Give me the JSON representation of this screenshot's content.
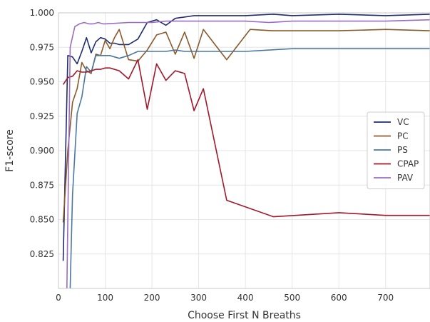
{
  "chart_data": {
    "type": "line",
    "title": "",
    "xlabel": "Choose First N Breaths",
    "ylabel": "F1-score",
    "xlim": [
      0,
      795
    ],
    "ylim": [
      0.8,
      1.0
    ],
    "xticks": [
      0,
      100,
      200,
      300,
      400,
      500,
      600,
      700
    ],
    "yticks": [
      0.825,
      0.85,
      0.875,
      0.9,
      0.925,
      0.95,
      0.975,
      1.0
    ],
    "grid": true,
    "legend_position": "center-right",
    "series": [
      {
        "name": "VC",
        "color": "#1f2c6e",
        "points": [
          [
            10,
            0.82
          ],
          [
            20,
            0.969
          ],
          [
            30,
            0.968
          ],
          [
            40,
            0.963
          ],
          [
            50,
            0.972
          ],
          [
            60,
            0.982
          ],
          [
            70,
            0.971
          ],
          [
            80,
            0.979
          ],
          [
            90,
            0.982
          ],
          [
            100,
            0.981
          ],
          [
            110,
            0.978
          ],
          [
            120,
            0.978
          ],
          [
            130,
            0.977
          ],
          [
            150,
            0.977
          ],
          [
            170,
            0.981
          ],
          [
            190,
            0.993
          ],
          [
            210,
            0.995
          ],
          [
            230,
            0.991
          ],
          [
            250,
            0.996
          ],
          [
            290,
            0.998
          ],
          [
            400,
            0.998
          ],
          [
            460,
            0.999
          ],
          [
            500,
            0.998
          ],
          [
            600,
            0.999
          ],
          [
            700,
            0.998
          ],
          [
            795,
            0.999
          ]
        ]
      },
      {
        "name": "PC",
        "color": "#8a5a2b",
        "points": [
          [
            10,
            0.848
          ],
          [
            20,
            0.9
          ],
          [
            30,
            0.935
          ],
          [
            40,
            0.945
          ],
          [
            50,
            0.964
          ],
          [
            60,
            0.958
          ],
          [
            70,
            0.956
          ],
          [
            80,
            0.97
          ],
          [
            90,
            0.969
          ],
          [
            100,
            0.98
          ],
          [
            110,
            0.974
          ],
          [
            120,
            0.982
          ],
          [
            130,
            0.988
          ],
          [
            150,
            0.966
          ],
          [
            170,
            0.965
          ],
          [
            190,
            0.973
          ],
          [
            210,
            0.984
          ],
          [
            230,
            0.986
          ],
          [
            250,
            0.97
          ],
          [
            270,
            0.986
          ],
          [
            290,
            0.967
          ],
          [
            310,
            0.988
          ],
          [
            360,
            0.966
          ],
          [
            410,
            0.988
          ],
          [
            460,
            0.987
          ],
          [
            600,
            0.987
          ],
          [
            700,
            0.988
          ],
          [
            795,
            0.987
          ]
        ]
      },
      {
        "name": "PS",
        "color": "#4a78a0",
        "points": [
          [
            25,
            0.8
          ],
          [
            30,
            0.868
          ],
          [
            40,
            0.927
          ],
          [
            50,
            0.939
          ],
          [
            60,
            0.961
          ],
          [
            70,
            0.957
          ],
          [
            80,
            0.969
          ],
          [
            90,
            0.969
          ],
          [
            100,
            0.969
          ],
          [
            110,
            0.969
          ],
          [
            130,
            0.967
          ],
          [
            150,
            0.969
          ],
          [
            170,
            0.972
          ],
          [
            230,
            0.972
          ],
          [
            250,
            0.973
          ],
          [
            270,
            0.972
          ],
          [
            400,
            0.972
          ],
          [
            500,
            0.974
          ],
          [
            795,
            0.974
          ]
        ]
      },
      {
        "name": "CPAP",
        "color": "#a0182a",
        "points": [
          [
            10,
            0.948
          ],
          [
            20,
            0.953
          ],
          [
            30,
            0.954
          ],
          [
            40,
            0.958
          ],
          [
            50,
            0.957
          ],
          [
            60,
            0.957
          ],
          [
            70,
            0.958
          ],
          [
            80,
            0.959
          ],
          [
            90,
            0.959
          ],
          [
            100,
            0.96
          ],
          [
            110,
            0.96
          ],
          [
            130,
            0.958
          ],
          [
            150,
            0.952
          ],
          [
            170,
            0.966
          ],
          [
            190,
            0.93
          ],
          [
            210,
            0.963
          ],
          [
            230,
            0.951
          ],
          [
            250,
            0.958
          ],
          [
            270,
            0.956
          ],
          [
            290,
            0.929
          ],
          [
            310,
            0.945
          ],
          [
            360,
            0.864
          ],
          [
            460,
            0.852
          ],
          [
            600,
            0.855
          ],
          [
            700,
            0.853
          ],
          [
            795,
            0.853
          ]
        ]
      },
      {
        "name": "PAV",
        "color": "#9b6cc4",
        "points": [
          [
            18,
            0.8
          ],
          [
            25,
            0.975
          ],
          [
            35,
            0.99
          ],
          [
            45,
            0.992
          ],
          [
            55,
            0.993
          ],
          [
            65,
            0.992
          ],
          [
            75,
            0.992
          ],
          [
            85,
            0.993
          ],
          [
            95,
            0.992
          ],
          [
            100,
            0.992
          ],
          [
            150,
            0.993
          ],
          [
            200,
            0.993
          ],
          [
            230,
            0.994
          ],
          [
            300,
            0.994
          ],
          [
            400,
            0.994
          ],
          [
            450,
            0.993
          ],
          [
            500,
            0.994
          ],
          [
            700,
            0.994
          ],
          [
            795,
            0.995
          ]
        ]
      }
    ]
  }
}
